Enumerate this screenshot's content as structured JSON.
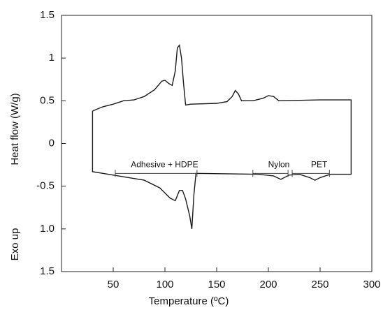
{
  "chart_data": {
    "type": "line",
    "xlabel": "Temperature (ºC)",
    "ylabels": [
      "Heat flow  (W/g)",
      "Exo up"
    ],
    "xlim": [
      0,
      300
    ],
    "xticks": [
      50,
      100,
      150,
      200,
      250,
      300
    ],
    "ylim": [
      -1.5,
      1.5
    ],
    "yticks": [
      1.5,
      1.0,
      0.5,
      0.0,
      -0.5,
      {
        "value": -1.0,
        "label": "1.0"
      },
      {
        "value": -1.5,
        "label": "1.5"
      }
    ],
    "series": [
      {
        "color": "#1a1a1a",
        "x": [
          30,
          40,
          50,
          60,
          70,
          80,
          90,
          97,
          100,
          104,
          107,
          110,
          112,
          114,
          116,
          118,
          120,
          125,
          150,
          160,
          165,
          168,
          171,
          174,
          185,
          195,
          200,
          205,
          210,
          250,
          280,
          280,
          260,
          250,
          245,
          240,
          230,
          220,
          212,
          205,
          190,
          130,
          128,
          126,
          124,
          120,
          117,
          114,
          110,
          105,
          95,
          80,
          60,
          40,
          30,
          30
        ],
        "values": [
          0.38,
          0.43,
          0.46,
          0.5,
          0.51,
          0.55,
          0.63,
          0.73,
          0.74,
          0.7,
          0.68,
          0.85,
          1.12,
          1.15,
          1.0,
          0.7,
          0.45,
          0.46,
          0.47,
          0.49,
          0.55,
          0.62,
          0.58,
          0.5,
          0.5,
          0.53,
          0.56,
          0.55,
          0.5,
          0.51,
          0.51,
          -0.36,
          -0.36,
          -0.4,
          -0.43,
          -0.4,
          -0.36,
          -0.37,
          -0.42,
          -0.38,
          -0.36,
          -0.35,
          -0.6,
          -1.0,
          -0.85,
          -0.65,
          -0.55,
          -0.55,
          -0.67,
          -0.64,
          -0.52,
          -0.43,
          -0.39,
          -0.35,
          -0.33,
          0.38
        ]
      }
    ],
    "annotations": [
      {
        "text": "Adhesive + HDPE",
        "range": [
          52,
          131
        ],
        "y": -0.35
      },
      {
        "text": "Nylon",
        "range": [
          185,
          219
        ],
        "y": -0.35
      },
      {
        "text": "PET",
        "range": [
          223,
          259
        ],
        "y": -0.35
      }
    ]
  }
}
